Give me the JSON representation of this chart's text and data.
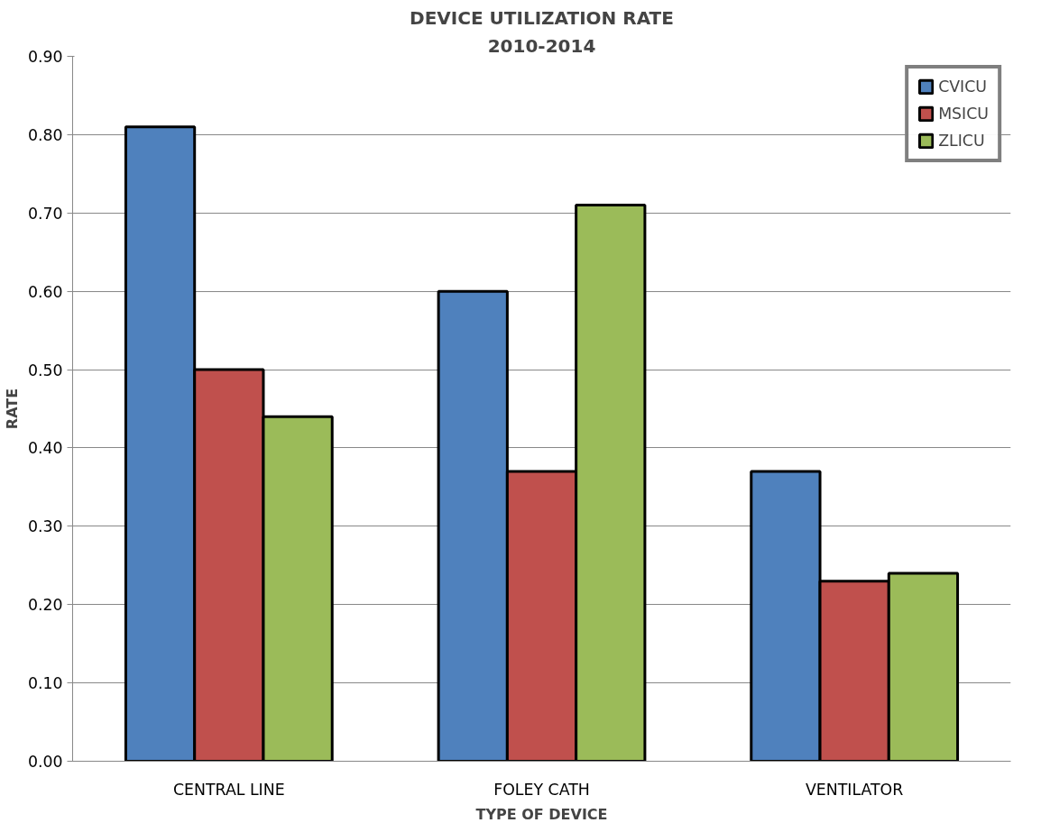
{
  "chart_data": {
    "type": "bar",
    "title": "DEVICE UTILIZATION RATE",
    "subtitle": "2010-2014",
    "xlabel": "TYPE OF DEVICE",
    "ylabel": "RATE",
    "categories": [
      "CENTRAL LINE",
      "FOLEY CATH",
      "VENTILATOR"
    ],
    "series": [
      {
        "name": "CVICU",
        "color": "#4f81bd",
        "values": [
          0.81,
          0.6,
          0.37
        ]
      },
      {
        "name": "MSICU",
        "color": "#c0504d",
        "values": [
          0.5,
          0.37,
          0.23
        ]
      },
      {
        "name": "ZLICU",
        "color": "#9bbb59",
        "values": [
          0.44,
          0.71,
          0.24
        ]
      }
    ],
    "ylim": [
      0,
      0.9
    ],
    "yticks": [
      {
        "value": 0,
        "label": "0.00"
      },
      {
        "value": 0.1,
        "label": "0.10"
      },
      {
        "value": 0.2,
        "label": "0.20"
      },
      {
        "value": 0.3,
        "label": "0.30"
      },
      {
        "value": 0.4,
        "label": "0.40"
      },
      {
        "value": 0.5,
        "label": "0.50"
      },
      {
        "value": 0.6,
        "label": "0.60"
      },
      {
        "value": 0.7,
        "label": "0.70"
      },
      {
        "value": 0.8,
        "label": "0.80"
      },
      {
        "value": 0.9,
        "label": "0.90"
      }
    ],
    "grid": "y",
    "legend": "top right"
  }
}
